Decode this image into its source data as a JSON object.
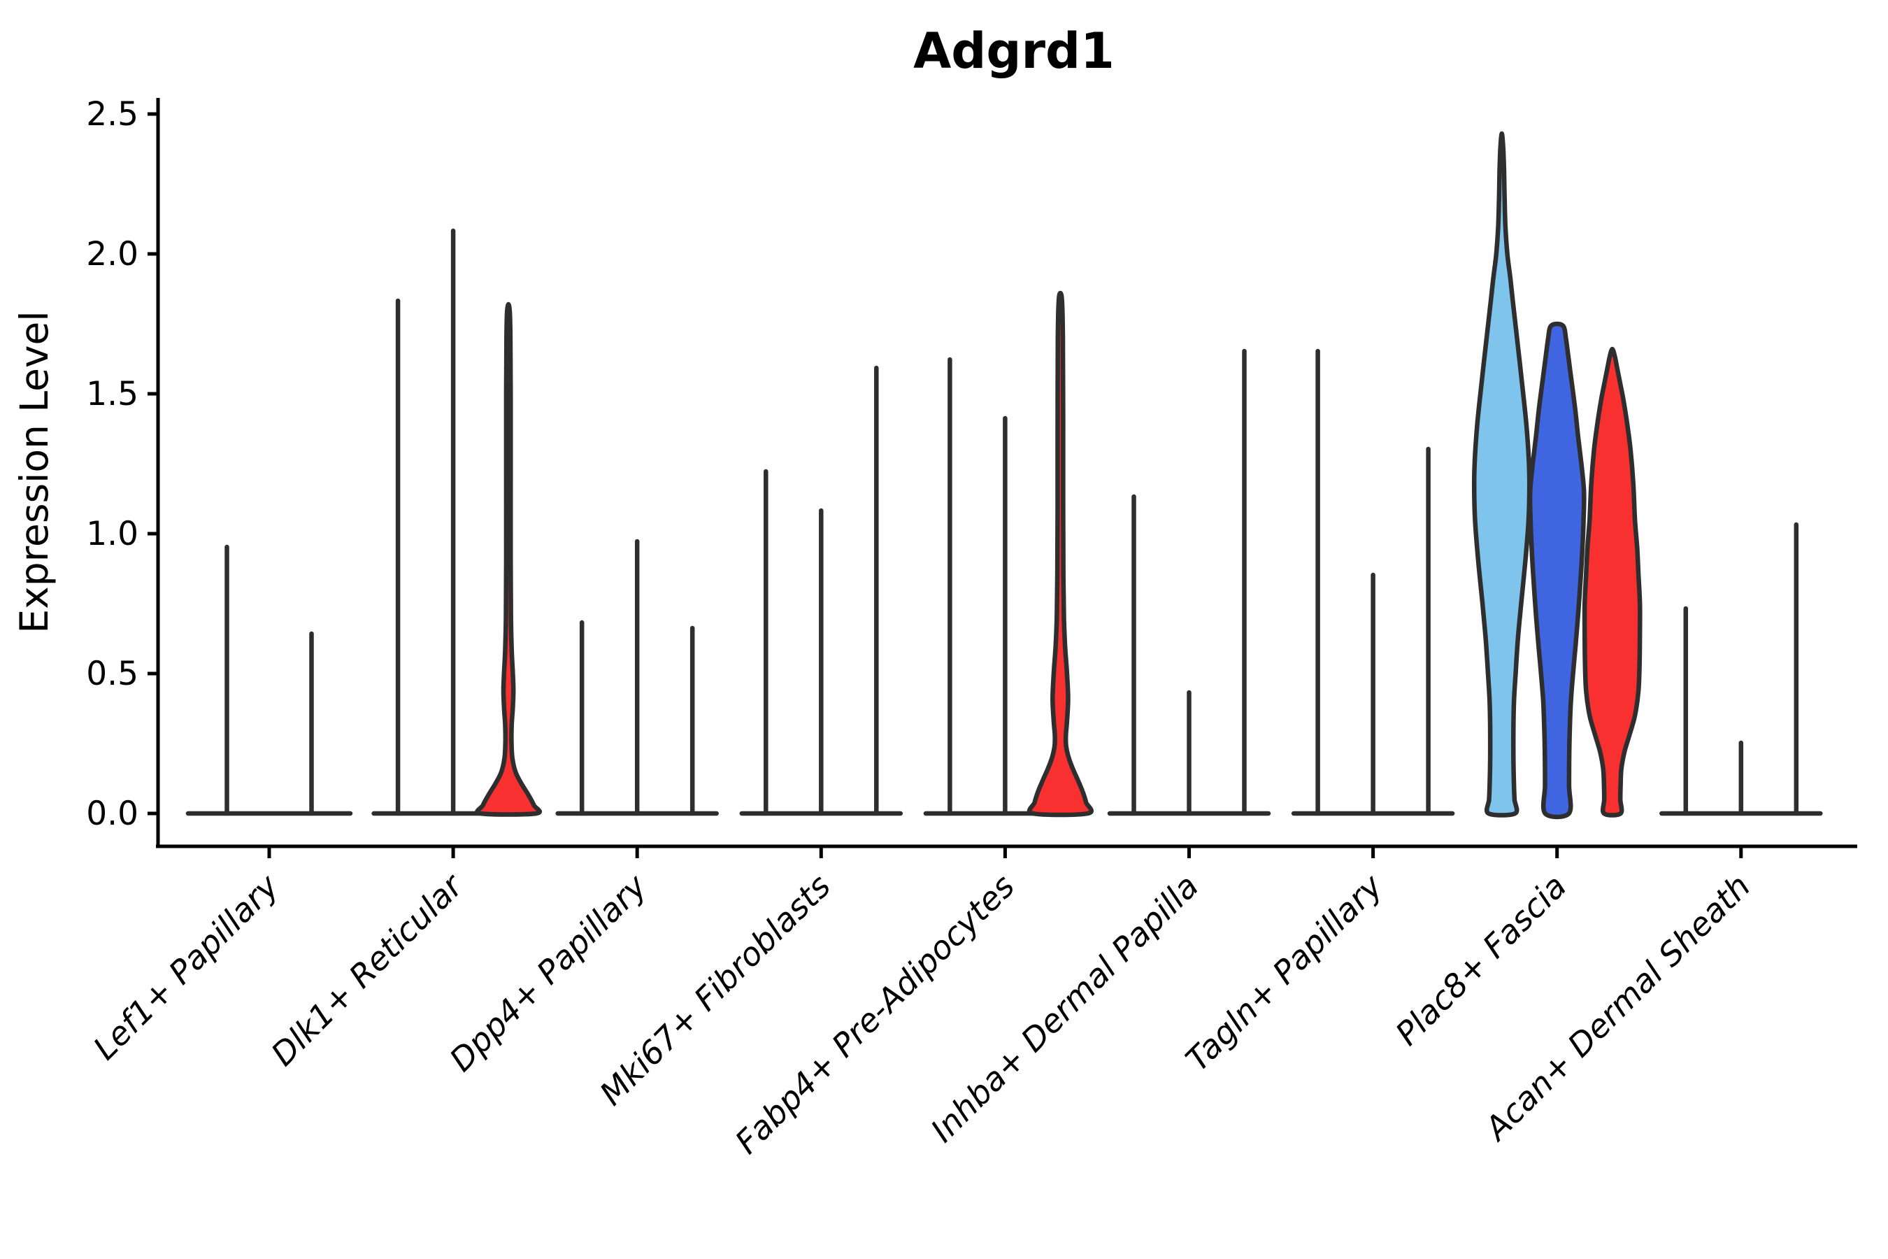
{
  "chart_data": {
    "type": "violin",
    "title": "Adgrd1",
    "xlabel": "",
    "ylabel": "Expression Level",
    "yticks": [
      0.0,
      0.5,
      1.0,
      1.5,
      2.0,
      2.5
    ],
    "ylim": [
      -0.115,
      2.56
    ],
    "grid": false,
    "legend": "none",
    "split_colors": [
      "#7EC4EC",
      "#3F66E0",
      "#F93030"
    ],
    "outline_color": "#2E2E2E",
    "axis_color": "#000000",
    "groups": [
      {
        "category": "Lef1+ Papillary",
        "violins": [
          {
            "color": "#7EC4EC",
            "max": 0.96,
            "shape": "spike"
          },
          {
            "color": "#3F66E0",
            "max": 0.65,
            "shape": "spike"
          }
        ]
      },
      {
        "category": "Dlk1+ Reticular",
        "violins": [
          {
            "color": "#7EC4EC",
            "max": 1.84,
            "shape": "spike"
          },
          {
            "color": "#3F66E0",
            "max": 2.09,
            "shape": "spike"
          },
          {
            "color": "#F93030",
            "max": 1.82,
            "shape": "density",
            "profile": [
              [
                1.82,
                0.0
              ],
              [
                1.79,
                0.05
              ],
              [
                1.7,
                0.07
              ],
              [
                1.5,
                0.08
              ],
              [
                1.2,
                0.08
              ],
              [
                0.9,
                0.08
              ],
              [
                0.7,
                0.09
              ],
              [
                0.58,
                0.12
              ],
              [
                0.5,
                0.16
              ],
              [
                0.44,
                0.18
              ],
              [
                0.38,
                0.16
              ],
              [
                0.32,
                0.12
              ],
              [
                0.26,
                0.11
              ],
              [
                0.2,
                0.14
              ],
              [
                0.15,
                0.25
              ],
              [
                0.11,
                0.45
              ],
              [
                0.07,
                0.7
              ],
              [
                0.03,
                0.92
              ],
              [
                0.0,
                1.0
              ]
            ]
          }
        ]
      },
      {
        "category": "Dpp4+ Papillary",
        "violins": [
          {
            "color": "#7EC4EC",
            "max": 0.69,
            "shape": "spike"
          },
          {
            "color": "#3F66E0",
            "max": 0.98,
            "shape": "spike"
          },
          {
            "color": "#F93030",
            "max": 0.67,
            "shape": "spike"
          }
        ]
      },
      {
        "category": "Mki67+ Fibroblasts",
        "violins": [
          {
            "color": "#7EC4EC",
            "max": 1.23,
            "shape": "spike"
          },
          {
            "color": "#3F66E0",
            "max": 1.09,
            "shape": "spike"
          },
          {
            "color": "#F93030",
            "max": 1.6,
            "shape": "spike"
          }
        ]
      },
      {
        "category": "Fabp4+ Pre-Adipocytes",
        "violins": [
          {
            "color": "#7EC4EC",
            "max": 1.63,
            "shape": "spike"
          },
          {
            "color": "#3F66E0",
            "max": 1.42,
            "shape": "spike"
          },
          {
            "color": "#F93030",
            "max": 1.86,
            "shape": "density",
            "profile": [
              [
                1.86,
                0.0
              ],
              [
                1.83,
                0.06
              ],
              [
                1.7,
                0.09
              ],
              [
                1.4,
                0.1
              ],
              [
                1.1,
                0.1
              ],
              [
                0.85,
                0.11
              ],
              [
                0.7,
                0.13
              ],
              [
                0.6,
                0.17
              ],
              [
                0.5,
                0.24
              ],
              [
                0.41,
                0.28
              ],
              [
                0.33,
                0.24
              ],
              [
                0.28,
                0.2
              ],
              [
                0.24,
                0.21
              ],
              [
                0.2,
                0.3
              ],
              [
                0.16,
                0.45
              ],
              [
                0.12,
                0.63
              ],
              [
                0.08,
                0.8
              ],
              [
                0.04,
                0.93
              ],
              [
                0.0,
                0.99
              ]
            ]
          }
        ]
      },
      {
        "category": "Inhba+ Dermal Papilla",
        "violins": [
          {
            "color": "#7EC4EC",
            "max": 1.14,
            "shape": "spike"
          },
          {
            "color": "#3F66E0",
            "max": 0.44,
            "shape": "spike"
          },
          {
            "color": "#F93030",
            "max": 1.66,
            "shape": "spike"
          }
        ]
      },
      {
        "category": "Tagln+ Papillary",
        "violins": [
          {
            "color": "#7EC4EC",
            "max": 1.66,
            "shape": "spike"
          },
          {
            "color": "#3F66E0",
            "max": 0.86,
            "shape": "spike"
          },
          {
            "color": "#F93030",
            "max": 1.31,
            "shape": "spike"
          }
        ]
      },
      {
        "category": "Plac8+ Fascia",
        "violins": [
          {
            "color": "#7EC4EC",
            "max": 2.43,
            "shape": "density",
            "profile": [
              [
                2.43,
                0.0
              ],
              [
                2.38,
                0.05
              ],
              [
                2.3,
                0.08
              ],
              [
                2.2,
                0.1
              ],
              [
                2.1,
                0.13
              ],
              [
                2.0,
                0.2
              ],
              [
                1.92,
                0.3
              ],
              [
                1.83,
                0.4
              ],
              [
                1.7,
                0.55
              ],
              [
                1.55,
                0.72
              ],
              [
                1.4,
                0.88
              ],
              [
                1.28,
                0.97
              ],
              [
                1.18,
                1.0
              ],
              [
                1.05,
                0.97
              ],
              [
                0.9,
                0.85
              ],
              [
                0.75,
                0.7
              ],
              [
                0.62,
                0.58
              ],
              [
                0.5,
                0.5
              ],
              [
                0.4,
                0.44
              ],
              [
                0.3,
                0.42
              ],
              [
                0.2,
                0.42
              ],
              [
                0.1,
                0.44
              ],
              [
                0.05,
                0.46
              ],
              [
                0.0,
                0.48
              ]
            ]
          },
          {
            "color": "#3F66E0",
            "max": 1.75,
            "shape": "density",
            "profile": [
              [
                1.75,
                0.0
              ],
              [
                1.74,
                0.24
              ],
              [
                1.7,
                0.32
              ],
              [
                1.64,
                0.4
              ],
              [
                1.55,
                0.52
              ],
              [
                1.45,
                0.65
              ],
              [
                1.35,
                0.76
              ],
              [
                1.25,
                0.88
              ],
              [
                1.15,
                0.975
              ],
              [
                1.05,
                0.96
              ],
              [
                0.95,
                0.92
              ],
              [
                0.85,
                0.86
              ],
              [
                0.72,
                0.77
              ],
              [
                0.6,
                0.67
              ],
              [
                0.5,
                0.58
              ],
              [
                0.4,
                0.5
              ],
              [
                0.3,
                0.46
              ],
              [
                0.2,
                0.44
              ],
              [
                0.1,
                0.435
              ],
              [
                0.0,
                0.43
              ]
            ]
          },
          {
            "color": "#F93030",
            "max": 1.66,
            "shape": "density",
            "profile": [
              [
                1.66,
                0.0
              ],
              [
                1.63,
                0.1
              ],
              [
                1.59,
                0.18
              ],
              [
                1.54,
                0.28
              ],
              [
                1.48,
                0.4
              ],
              [
                1.4,
                0.53
              ],
              [
                1.3,
                0.66
              ],
              [
                1.18,
                0.76
              ],
              [
                1.05,
                0.82
              ],
              [
                0.95,
                0.9
              ],
              [
                0.85,
                0.95
              ],
              [
                0.75,
                1.0
              ],
              [
                0.65,
                1.0
              ],
              [
                0.55,
                0.99
              ],
              [
                0.44,
                0.95
              ],
              [
                0.35,
                0.82
              ],
              [
                0.28,
                0.62
              ],
              [
                0.22,
                0.44
              ],
              [
                0.16,
                0.33
              ],
              [
                0.1,
                0.3
              ],
              [
                0.05,
                0.29
              ],
              [
                0.0,
                0.3
              ]
            ]
          }
        ]
      },
      {
        "category": "Acan+ Dermal Sheath",
        "violins": [
          {
            "color": "#7EC4EC",
            "max": 0.74,
            "shape": "spike"
          },
          {
            "color": "#3F66E0",
            "max": 0.26,
            "shape": "spike"
          },
          {
            "color": "#F93030",
            "max": 1.04,
            "shape": "spike"
          }
        ]
      }
    ]
  }
}
